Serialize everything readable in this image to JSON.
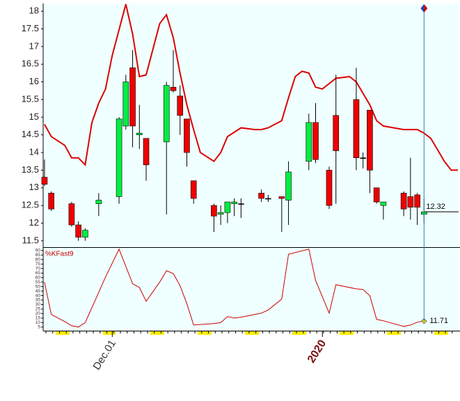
{
  "chart_data": [
    {
      "type": "candlestick",
      "x": [
        -10,
        -9,
        -6,
        -5,
        -4,
        -2,
        1,
        2,
        3,
        4,
        5,
        8,
        9,
        10,
        11,
        12,
        15,
        16,
        17,
        18,
        19,
        22,
        23,
        25,
        26,
        29,
        30,
        32,
        33,
        36,
        37,
        38,
        39,
        40,
        43,
        44,
        45,
        46
      ],
      "open": [
        13.3,
        12.85,
        12.55,
        11.95,
        11.6,
        12.55,
        12.75,
        14.75,
        16.4,
        14.5,
        14.4,
        14.3,
        15.85,
        15.6,
        14.95,
        13.2,
        12.5,
        12.25,
        12.3,
        12.55,
        12.55,
        12.85,
        12.7,
        12.75,
        12.65,
        13.75,
        14.85,
        13.5,
        15.05,
        15.5,
        13.85,
        15.2,
        13.0,
        12.5,
        12.85,
        12.75,
        12.8,
        12.25
      ],
      "high": [
        13.8,
        12.9,
        12.6,
        12.05,
        11.85,
        12.85,
        15.0,
        16.2,
        16.9,
        15.35,
        14.4,
        16.0,
        16.9,
        15.9,
        14.95,
        13.2,
        12.55,
        12.5,
        12.6,
        12.7,
        12.7,
        12.95,
        12.8,
        12.75,
        13.75,
        15.1,
        15.4,
        13.6,
        16.2,
        16.4,
        14.0,
        15.2,
        13.0,
        12.6,
        12.9,
        13.85,
        12.85,
        12.7
      ],
      "low": [
        13.05,
        12.35,
        11.9,
        11.5,
        11.5,
        12.2,
        12.55,
        14.65,
        14.15,
        14.1,
        13.2,
        12.25,
        15.7,
        14.5,
        13.6,
        12.55,
        11.75,
        11.95,
        12.0,
        12.2,
        12.15,
        12.6,
        12.6,
        11.75,
        11.95,
        13.5,
        13.7,
        12.4,
        12.55,
        13.5,
        13.55,
        12.85,
        12.55,
        12.1,
        12.2,
        12.1,
        11.95,
        12.0
      ],
      "close": [
        13.1,
        12.4,
        11.95,
        11.6,
        11.8,
        12.65,
        14.95,
        16.0,
        14.75,
        14.55,
        13.65,
        15.9,
        15.75,
        15.05,
        14.0,
        12.7,
        12.2,
        12.3,
        12.6,
        12.6,
        12.55,
        12.7,
        12.7,
        12.7,
        13.45,
        14.85,
        13.8,
        12.5,
        14.05,
        13.85,
        13.85,
        13.5,
        12.6,
        12.6,
        12.4,
        12.45,
        12.45,
        12.32
      ],
      "up_color": "#00ee44",
      "down_color": "#ee0000",
      "lines": [
        {
          "color": "#dd0000",
          "x": [
            -10,
            -9,
            -7,
            -6,
            -5,
            -4,
            -3,
            -2,
            -1,
            0,
            2,
            3,
            4,
            5,
            7,
            8,
            9,
            10,
            11,
            12,
            13,
            15,
            16,
            17,
            19,
            21,
            22,
            23,
            25,
            26,
            27,
            28,
            29,
            30,
            31,
            33,
            35,
            36,
            38,
            39,
            40,
            43,
            45,
            46,
            47,
            49,
            50,
            51
          ],
          "values": [
            14.8,
            14.45,
            14.2,
            13.85,
            13.85,
            13.65,
            14.85,
            15.4,
            15.8,
            16.75,
            18.2,
            17.35,
            16.15,
            16.2,
            17.65,
            17.9,
            17.25,
            16.25,
            15.35,
            14.65,
            14.0,
            13.75,
            14.0,
            14.45,
            14.7,
            14.65,
            14.65,
            14.7,
            14.9,
            15.55,
            16.15,
            16.3,
            16.25,
            15.85,
            15.8,
            16.1,
            16.15,
            16.0,
            15.35,
            14.9,
            14.75,
            14.65,
            14.65,
            14.55,
            14.4,
            13.75,
            13.5,
            13.5
          ]
        }
      ],
      "xlim": [
        -10.2,
        51.1
      ],
      "ylim": [
        11.32,
        18.22
      ],
      "yticks": [
        11.5,
        12,
        12.5,
        13,
        13.5,
        14,
        14.5,
        15,
        15.5,
        16,
        16.5,
        17,
        17.5,
        18
      ],
      "grid": false
    },
    {
      "type": "line",
      "title": "%KFast9",
      "color": "#cc0000",
      "x": [
        -10,
        -9,
        -7,
        -6,
        -5,
        -4,
        -2,
        -1,
        1,
        3,
        4,
        5,
        7,
        8,
        9,
        10,
        11,
        12,
        15,
        16,
        17,
        18,
        19,
        22,
        23,
        25,
        26,
        29,
        30,
        32,
        33,
        36,
        37,
        38,
        39,
        40,
        43,
        44,
        45,
        46
      ],
      "values": [
        55,
        19,
        11,
        6.5,
        5,
        10,
        43.6,
        60.6,
        91.5,
        53,
        49,
        33.6,
        55,
        67.6,
        64.5,
        51,
        31,
        7.3,
        9,
        10,
        16.6,
        15,
        16,
        20.5,
        24,
        36,
        86,
        91.5,
        56.8,
        20.5,
        52,
        47.5,
        46.7,
        39.8,
        13.5,
        12,
        5.8,
        7.3,
        10.4,
        11.71
      ],
      "xlim": [
        -10.2,
        51.1
      ],
      "ylim": [
        1,
        93
      ],
      "yticks": [
        5,
        10,
        15,
        20,
        25,
        30,
        35,
        40,
        45,
        50,
        55,
        60,
        65,
        70,
        75,
        80,
        85,
        90
      ],
      "xticks": [
        {
          "value": 0,
          "label": "Dec.01"
        },
        {
          "value": 31,
          "label": "2020"
        }
      ],
      "grid": false
    }
  ]
}
